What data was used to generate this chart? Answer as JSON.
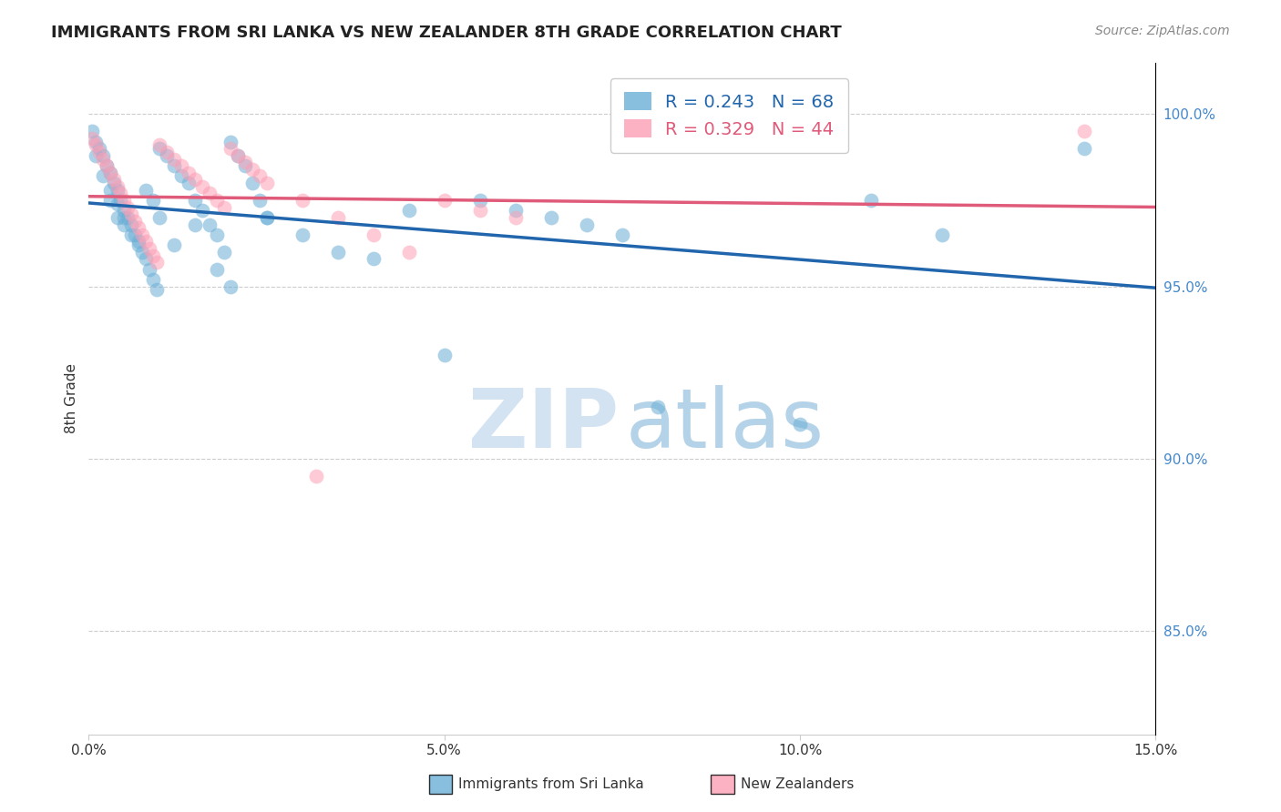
{
  "title": "IMMIGRANTS FROM SRI LANKA VS NEW ZEALANDER 8TH GRADE CORRELATION CHART",
  "source": "Source: ZipAtlas.com",
  "ylabel": "8th Grade",
  "xlim": [
    0.0,
    15.0
  ],
  "ylim": [
    82.0,
    101.5
  ],
  "yticks_right": [
    85.0,
    90.0,
    95.0,
    100.0
  ],
  "xtick_labels": [
    "0.0%",
    "5.0%",
    "10.0%",
    "15.0%"
  ],
  "ytick_labels_right": [
    "85.0%",
    "90.0%",
    "95.0%",
    "100.0%"
  ],
  "blue_color": "#6baed6",
  "pink_color": "#fc9fb5",
  "blue_line_color": "#2166ac",
  "pink_line_color": "#e05a7a",
  "R_blue": 0.243,
  "N_blue": 68,
  "R_pink": 0.329,
  "N_pink": 44,
  "legend_label_blue": "Immigrants from Sri Lanka",
  "legend_label_pink": "New Zealanders",
  "blue_x": [
    0.05,
    0.1,
    0.15,
    0.2,
    0.25,
    0.3,
    0.35,
    0.4,
    0.45,
    0.5,
    0.55,
    0.6,
    0.65,
    0.7,
    0.75,
    0.8,
    0.85,
    0.9,
    0.95,
    1.0,
    1.1,
    1.2,
    1.3,
    1.4,
    1.5,
    1.6,
    1.7,
    1.8,
    1.9,
    2.0,
    2.1,
    2.2,
    2.3,
    2.4,
    2.5,
    0.3,
    0.4,
    0.5,
    0.6,
    0.7,
    0.8,
    0.9,
    1.0,
    1.2,
    1.5,
    1.8,
    2.0,
    2.5,
    3.0,
    3.5,
    4.0,
    4.5,
    5.0,
    5.5,
    6.0,
    6.5,
    7.0,
    7.5,
    8.0,
    10.0,
    11.0,
    12.0,
    14.0,
    0.1,
    0.2,
    0.3,
    0.4,
    0.5
  ],
  "blue_y": [
    99.5,
    99.2,
    99.0,
    98.8,
    98.5,
    98.3,
    98.0,
    97.8,
    97.5,
    97.2,
    97.0,
    96.8,
    96.5,
    96.3,
    96.0,
    95.8,
    95.5,
    95.2,
    94.9,
    99.0,
    98.8,
    98.5,
    98.2,
    98.0,
    97.5,
    97.2,
    96.8,
    96.5,
    96.0,
    99.2,
    98.8,
    98.5,
    98.0,
    97.5,
    97.0,
    97.5,
    97.0,
    96.8,
    96.5,
    96.2,
    97.8,
    97.5,
    97.0,
    96.2,
    96.8,
    95.5,
    95.0,
    97.0,
    96.5,
    96.0,
    95.8,
    97.2,
    93.0,
    97.5,
    97.2,
    97.0,
    96.8,
    96.5,
    91.5,
    91.0,
    97.5,
    96.5,
    99.0,
    98.8,
    98.2,
    97.8,
    97.4,
    97.0
  ],
  "pink_x": [
    0.05,
    0.1,
    0.15,
    0.2,
    0.25,
    0.3,
    0.35,
    0.4,
    0.45,
    0.5,
    0.55,
    0.6,
    0.65,
    0.7,
    0.75,
    0.8,
    0.85,
    0.9,
    0.95,
    1.0,
    1.1,
    1.2,
    1.3,
    1.4,
    1.5,
    1.6,
    1.7,
    1.8,
    1.9,
    2.0,
    2.1,
    2.2,
    2.3,
    2.4,
    2.5,
    3.0,
    3.5,
    4.0,
    4.5,
    5.0,
    5.5,
    6.0,
    14.0,
    3.2
  ],
  "pink_y": [
    99.3,
    99.1,
    98.9,
    98.7,
    98.5,
    98.3,
    98.1,
    97.9,
    97.7,
    97.5,
    97.3,
    97.1,
    96.9,
    96.7,
    96.5,
    96.3,
    96.1,
    95.9,
    95.7,
    99.1,
    98.9,
    98.7,
    98.5,
    98.3,
    98.1,
    97.9,
    97.7,
    97.5,
    97.3,
    99.0,
    98.8,
    98.6,
    98.4,
    98.2,
    98.0,
    97.5,
    97.0,
    96.5,
    96.0,
    97.5,
    97.2,
    97.0,
    99.5,
    89.5
  ]
}
